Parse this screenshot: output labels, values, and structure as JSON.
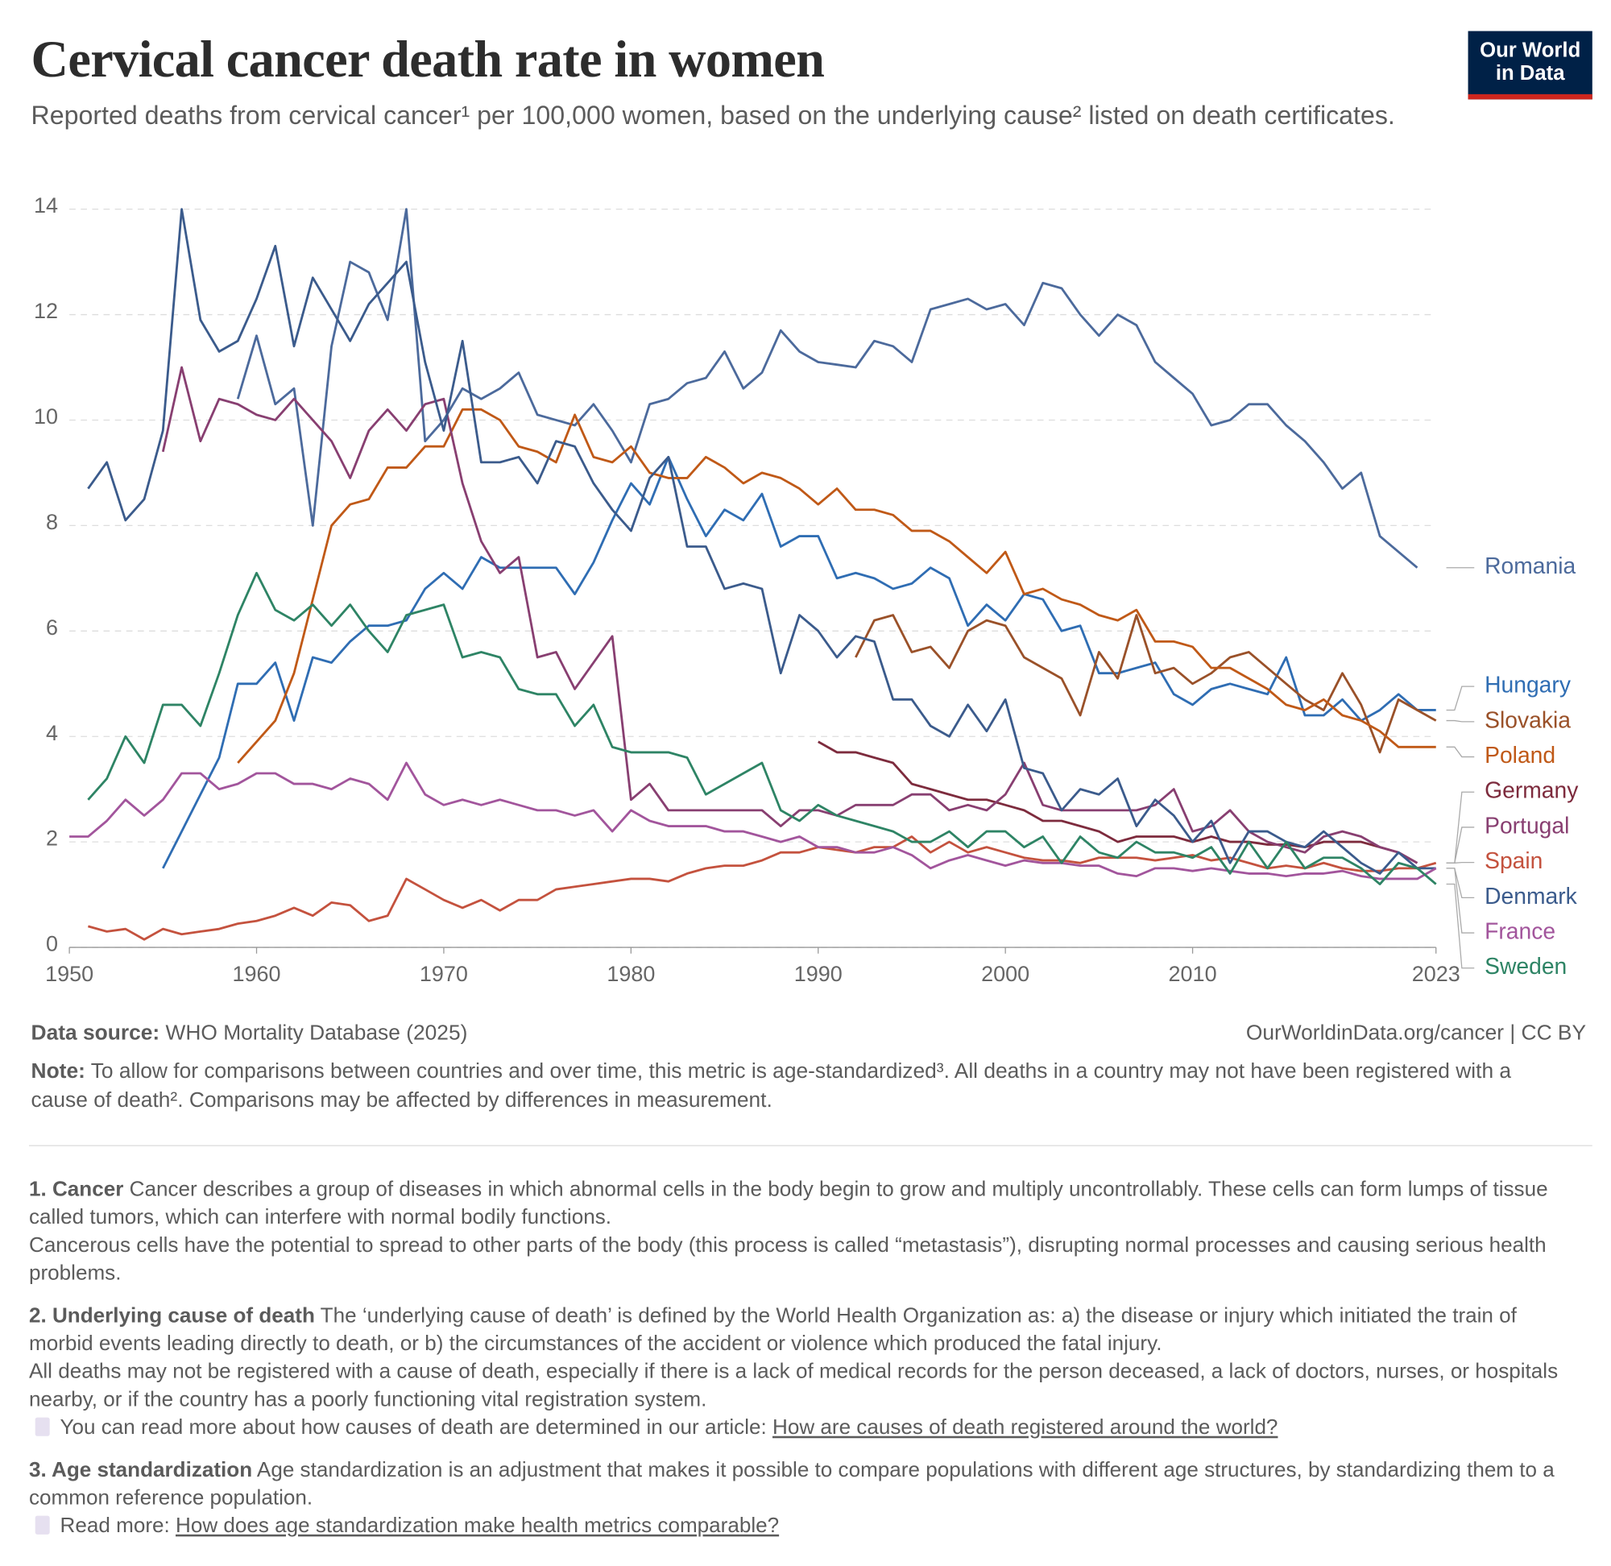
{
  "logo": [
    "Our World",
    "in Data"
  ],
  "chart_data": {
    "type": "line",
    "title": "Cervical cancer death rate in women",
    "subtitle": "Reported deaths from cervical cancer¹ per 100,000 women, based on the underlying cause² listed on death certificates.",
    "x": [
      1950,
      1951,
      1952,
      1953,
      1954,
      1955,
      1956,
      1957,
      1958,
      1959,
      1960,
      1961,
      1962,
      1963,
      1964,
      1965,
      1966,
      1967,
      1968,
      1969,
      1970,
      1971,
      1972,
      1973,
      1974,
      1975,
      1976,
      1977,
      1978,
      1979,
      1980,
      1981,
      1982,
      1983,
      1984,
      1985,
      1986,
      1987,
      1988,
      1989,
      1990,
      1991,
      1992,
      1993,
      1994,
      1995,
      1996,
      1997,
      1998,
      1999,
      2000,
      2001,
      2002,
      2003,
      2004,
      2005,
      2006,
      2007,
      2008,
      2009,
      2010,
      2011,
      2012,
      2013,
      2014,
      2015,
      2016,
      2017,
      2018,
      2019,
      2020,
      2021,
      2022,
      2023
    ],
    "xlim": [
      1950,
      2023
    ],
    "xticks": [
      1950,
      1960,
      1970,
      1980,
      1990,
      2000,
      2010,
      2023
    ],
    "ylim": [
      0,
      14
    ],
    "yticks": [
      0,
      2,
      4,
      6,
      8,
      10,
      12,
      14
    ],
    "grid": true,
    "series": [
      {
        "name": "Romania",
        "color": "#4c6a9c",
        "values": [
          null,
          null,
          null,
          null,
          null,
          null,
          null,
          null,
          null,
          10.4,
          11.6,
          10.3,
          10.6,
          8.0,
          11.4,
          13.0,
          12.8,
          11.9,
          14.0,
          9.6,
          10.0,
          10.6,
          10.4,
          10.6,
          10.9,
          10.1,
          10.0,
          9.9,
          10.3,
          9.8,
          9.2,
          10.3,
          10.4,
          10.7,
          10.8,
          11.3,
          10.6,
          10.9,
          11.7,
          11.3,
          11.1,
          11.05,
          11.0,
          11.5,
          11.4,
          11.1,
          12.1,
          12.2,
          12.3,
          12.1,
          12.2,
          11.8,
          12.6,
          12.5,
          12.0,
          11.6,
          12.0,
          11.8,
          11.1,
          10.8,
          10.5,
          9.9,
          10.0,
          10.3,
          10.3,
          9.9,
          9.6,
          9.2,
          8.7,
          9.0,
          7.8,
          7.5,
          7.2,
          null
        ]
      },
      {
        "name": "Hungary",
        "color": "#2f6db3",
        "values": [
          null,
          null,
          null,
          null,
          null,
          1.5,
          2.2,
          2.9,
          3.6,
          5.0,
          5.0,
          5.4,
          4.3,
          5.5,
          5.4,
          5.8,
          6.1,
          6.1,
          6.2,
          6.8,
          7.1,
          6.8,
          7.4,
          7.2,
          7.2,
          7.2,
          7.2,
          6.7,
          7.3,
          8.1,
          8.8,
          8.4,
          9.3,
          8.5,
          7.8,
          8.3,
          8.1,
          8.6,
          7.6,
          7.8,
          7.8,
          7.0,
          7.1,
          7.0,
          6.8,
          6.9,
          7.2,
          7.0,
          6.1,
          6.5,
          6.2,
          6.7,
          6.6,
          6.0,
          6.1,
          5.2,
          5.2,
          5.3,
          5.4,
          4.8,
          4.6,
          4.9,
          5.0,
          4.9,
          4.8,
          5.5,
          4.4,
          4.4,
          4.7,
          4.3,
          4.5,
          4.8,
          4.5,
          4.5
        ]
      },
      {
        "name": "Slovakia",
        "color": "#9a5129",
        "values": [
          null,
          null,
          null,
          null,
          null,
          null,
          null,
          null,
          null,
          null,
          null,
          null,
          null,
          null,
          null,
          null,
          null,
          null,
          null,
          null,
          null,
          null,
          null,
          null,
          null,
          null,
          null,
          null,
          null,
          null,
          null,
          null,
          null,
          null,
          null,
          null,
          null,
          null,
          null,
          null,
          null,
          null,
          5.5,
          6.2,
          6.3,
          5.6,
          5.7,
          5.3,
          6.0,
          6.2,
          6.1,
          5.5,
          5.3,
          5.1,
          4.4,
          5.6,
          5.1,
          6.3,
          5.2,
          5.3,
          5.0,
          5.2,
          5.5,
          5.6,
          5.3,
          5.0,
          4.7,
          4.5,
          5.2,
          4.6,
          3.7,
          4.7,
          4.5,
          4.3
        ]
      },
      {
        "name": "Poland",
        "color": "#c05917",
        "values": [
          null,
          null,
          null,
          null,
          null,
          null,
          null,
          null,
          null,
          3.5,
          3.9,
          4.3,
          5.2,
          6.6,
          8.0,
          8.4,
          8.5,
          9.1,
          9.1,
          9.5,
          9.5,
          10.2,
          10.2,
          10.0,
          9.5,
          9.4,
          9.2,
          10.1,
          9.3,
          9.2,
          9.5,
          9.0,
          8.9,
          8.9,
          9.3,
          9.1,
          8.8,
          9.0,
          8.9,
          8.7,
          8.4,
          8.7,
          8.3,
          8.3,
          8.2,
          7.9,
          7.9,
          7.7,
          7.4,
          7.1,
          7.5,
          6.7,
          6.8,
          6.6,
          6.5,
          6.3,
          6.2,
          6.4,
          5.8,
          5.8,
          5.7,
          5.3,
          5.3,
          5.1,
          4.9,
          4.6,
          4.5,
          4.7,
          4.4,
          4.3,
          4.1,
          3.8,
          3.8,
          3.8
        ]
      },
      {
        "name": "Germany",
        "color": "#7d2b3d",
        "values": [
          null,
          null,
          null,
          null,
          null,
          null,
          null,
          null,
          null,
          null,
          null,
          null,
          null,
          null,
          null,
          null,
          null,
          null,
          null,
          null,
          null,
          null,
          null,
          null,
          null,
          null,
          null,
          null,
          null,
          null,
          null,
          null,
          null,
          null,
          null,
          null,
          null,
          null,
          null,
          null,
          3.9,
          3.7,
          3.7,
          3.6,
          3.5,
          3.1,
          3.0,
          2.9,
          2.8,
          2.8,
          2.7,
          2.6,
          2.4,
          2.4,
          2.3,
          2.2,
          2.0,
          2.1,
          2.1,
          2.1,
          2.0,
          2.1,
          2.0,
          2.0,
          1.95,
          1.95,
          1.9,
          2.0,
          2.0,
          2.0,
          1.9,
          1.8,
          1.6,
          null
        ]
      },
      {
        "name": "Portugal",
        "color": "#883f71",
        "values": [
          null,
          null,
          null,
          null,
          null,
          9.4,
          11.0,
          9.6,
          10.4,
          10.3,
          10.1,
          10.0,
          10.4,
          10.0,
          9.6,
          8.9,
          9.8,
          10.2,
          9.8,
          10.3,
          10.4,
          8.8,
          7.7,
          7.1,
          7.4,
          5.5,
          5.6,
          4.9,
          5.4,
          5.9,
          2.8,
          3.1,
          2.6,
          2.6,
          2.6,
          2.6,
          2.6,
          2.6,
          2.3,
          2.6,
          2.6,
          2.5,
          2.7,
          2.7,
          2.7,
          2.9,
          2.9,
          2.6,
          2.7,
          2.6,
          2.9,
          3.5,
          2.7,
          2.6,
          2.6,
          2.6,
          2.6,
          2.6,
          2.7,
          3.0,
          2.2,
          2.3,
          2.6,
          2.2,
          2.0,
          1.9,
          1.8,
          2.1,
          2.2,
          2.1,
          1.9,
          1.8,
          1.6,
          null
        ]
      },
      {
        "name": "Spain",
        "color": "#c4523e",
        "values": [
          null,
          0.4,
          0.3,
          0.35,
          0.15,
          0.35,
          0.25,
          0.3,
          0.35,
          0.45,
          0.5,
          0.6,
          0.75,
          0.6,
          0.85,
          0.8,
          0.5,
          0.6,
          1.3,
          1.1,
          0.9,
          0.75,
          0.9,
          0.7,
          0.9,
          0.9,
          1.1,
          1.15,
          1.2,
          1.25,
          1.3,
          1.3,
          1.25,
          1.4,
          1.5,
          1.55,
          1.55,
          1.65,
          1.8,
          1.8,
          1.9,
          1.85,
          1.8,
          1.9,
          1.9,
          2.1,
          1.8,
          2.0,
          1.8,
          1.9,
          1.8,
          1.7,
          1.65,
          1.65,
          1.6,
          1.7,
          1.7,
          1.7,
          1.65,
          1.7,
          1.75,
          1.65,
          1.7,
          1.6,
          1.5,
          1.55,
          1.5,
          1.6,
          1.5,
          1.45,
          1.45,
          1.5,
          1.5,
          1.6
        ]
      },
      {
        "name": "Denmark",
        "color": "#3b5b8c",
        "values": [
          null,
          8.7,
          9.2,
          8.1,
          8.5,
          9.8,
          14.0,
          11.9,
          11.3,
          11.5,
          12.3,
          13.3,
          11.4,
          12.7,
          12.1,
          11.5,
          12.2,
          12.6,
          13.0,
          11.1,
          9.8,
          11.5,
          9.2,
          9.2,
          9.3,
          8.8,
          9.6,
          9.5,
          8.8,
          8.3,
          7.9,
          8.9,
          9.3,
          7.6,
          7.6,
          6.8,
          6.9,
          6.8,
          5.2,
          6.3,
          6.0,
          5.5,
          5.9,
          5.8,
          4.7,
          4.7,
          4.2,
          4.0,
          4.6,
          4.1,
          4.7,
          3.4,
          3.3,
          2.6,
          3.0,
          2.9,
          3.2,
          2.3,
          2.8,
          2.5,
          2.0,
          2.4,
          1.6,
          2.2,
          2.2,
          2.0,
          1.9,
          2.2,
          1.9,
          1.6,
          1.4,
          1.8,
          1.5,
          1.5
        ]
      },
      {
        "name": "France",
        "color": "#a2559c",
        "values": [
          2.1,
          2.1,
          2.4,
          2.8,
          2.5,
          2.8,
          3.3,
          3.3,
          3.0,
          3.1,
          3.3,
          3.3,
          3.1,
          3.1,
          3.0,
          3.2,
          3.1,
          2.8,
          3.5,
          2.9,
          2.7,
          2.8,
          2.7,
          2.8,
          2.7,
          2.6,
          2.6,
          2.5,
          2.6,
          2.2,
          2.6,
          2.4,
          2.3,
          2.3,
          2.3,
          2.2,
          2.2,
          2.1,
          2.0,
          2.1,
          1.9,
          1.9,
          1.8,
          1.8,
          1.9,
          1.75,
          1.5,
          1.65,
          1.75,
          1.65,
          1.55,
          1.65,
          1.6,
          1.6,
          1.55,
          1.55,
          1.4,
          1.35,
          1.5,
          1.5,
          1.45,
          1.5,
          1.45,
          1.4,
          1.4,
          1.35,
          1.4,
          1.4,
          1.45,
          1.35,
          1.3,
          1.3,
          1.3,
          1.5
        ]
      },
      {
        "name": "Sweden",
        "color": "#2e8465",
        "values": [
          null,
          2.8,
          3.2,
          4.0,
          3.5,
          4.6,
          4.6,
          4.2,
          5.2,
          6.3,
          7.1,
          6.4,
          6.2,
          6.5,
          6.1,
          6.5,
          6.0,
          5.6,
          6.3,
          6.4,
          6.5,
          5.5,
          5.6,
          5.5,
          4.9,
          4.8,
          4.8,
          4.2,
          4.6,
          3.8,
          3.7,
          3.7,
          3.7,
          3.6,
          2.9,
          3.1,
          3.3,
          3.5,
          2.6,
          2.4,
          2.7,
          2.5,
          2.4,
          2.3,
          2.2,
          2.0,
          2.0,
          2.2,
          1.9,
          2.2,
          2.2,
          1.9,
          2.1,
          1.6,
          2.1,
          1.8,
          1.7,
          2.0,
          1.8,
          1.8,
          1.7,
          1.9,
          1.4,
          2.0,
          1.5,
          2.0,
          1.5,
          1.7,
          1.7,
          1.5,
          1.2,
          1.6,
          1.5,
          1.2
        ]
      }
    ]
  },
  "footer": {
    "source_label": "Data source:",
    "source": "WHO Mortality Database (2025)",
    "url": "OurWorldinData.org/cancer | CC BY",
    "note_label": "Note:",
    "note": "To allow for comparisons between countries and over time, this metric is age-standardized³. All deaths in a country may not have been registered with a cause of death². Comparisons may be affected by differences in measurement."
  },
  "footnotes": [
    {
      "title": "1. Cancer",
      "paragraphs": [
        "Cancer describes a group of diseases in which abnormal cells in the body begin to grow and multiply uncontrollably. These cells can form lumps of tissue called tumors, which can interfere with normal bodily functions.",
        "Cancerous cells have the potential to spread to other parts of the body (this process is called “metastasis”), disrupting normal processes and causing serious health problems."
      ]
    },
    {
      "title": "2. Underlying cause of death",
      "paragraphs": [
        "The ‘underlying cause of death’ is defined by the World Health Organization as: a) the disease or injury which initiated the train of morbid events leading directly to death, or b) the circumstances of the accident or violence which produced the fatal injury.",
        "All deaths may not be registered with a cause of death, especially if there is a lack of medical records for the person deceased, a lack of doctors, nurses, or hospitals nearby, or if the country has a poorly functioning vital registration system."
      ],
      "link_prefix": "You can read more about how causes of death are determined in our article:",
      "link": "How are causes of death registered around the world?"
    },
    {
      "title": "3. Age standardization",
      "paragraphs": [
        "Age standardization is an adjustment that makes it possible to compare populations with different age structures, by standardizing them to a common reference population."
      ],
      "link_prefix": "Read more:",
      "link": "How does age standardization make health metrics comparable?"
    }
  ]
}
